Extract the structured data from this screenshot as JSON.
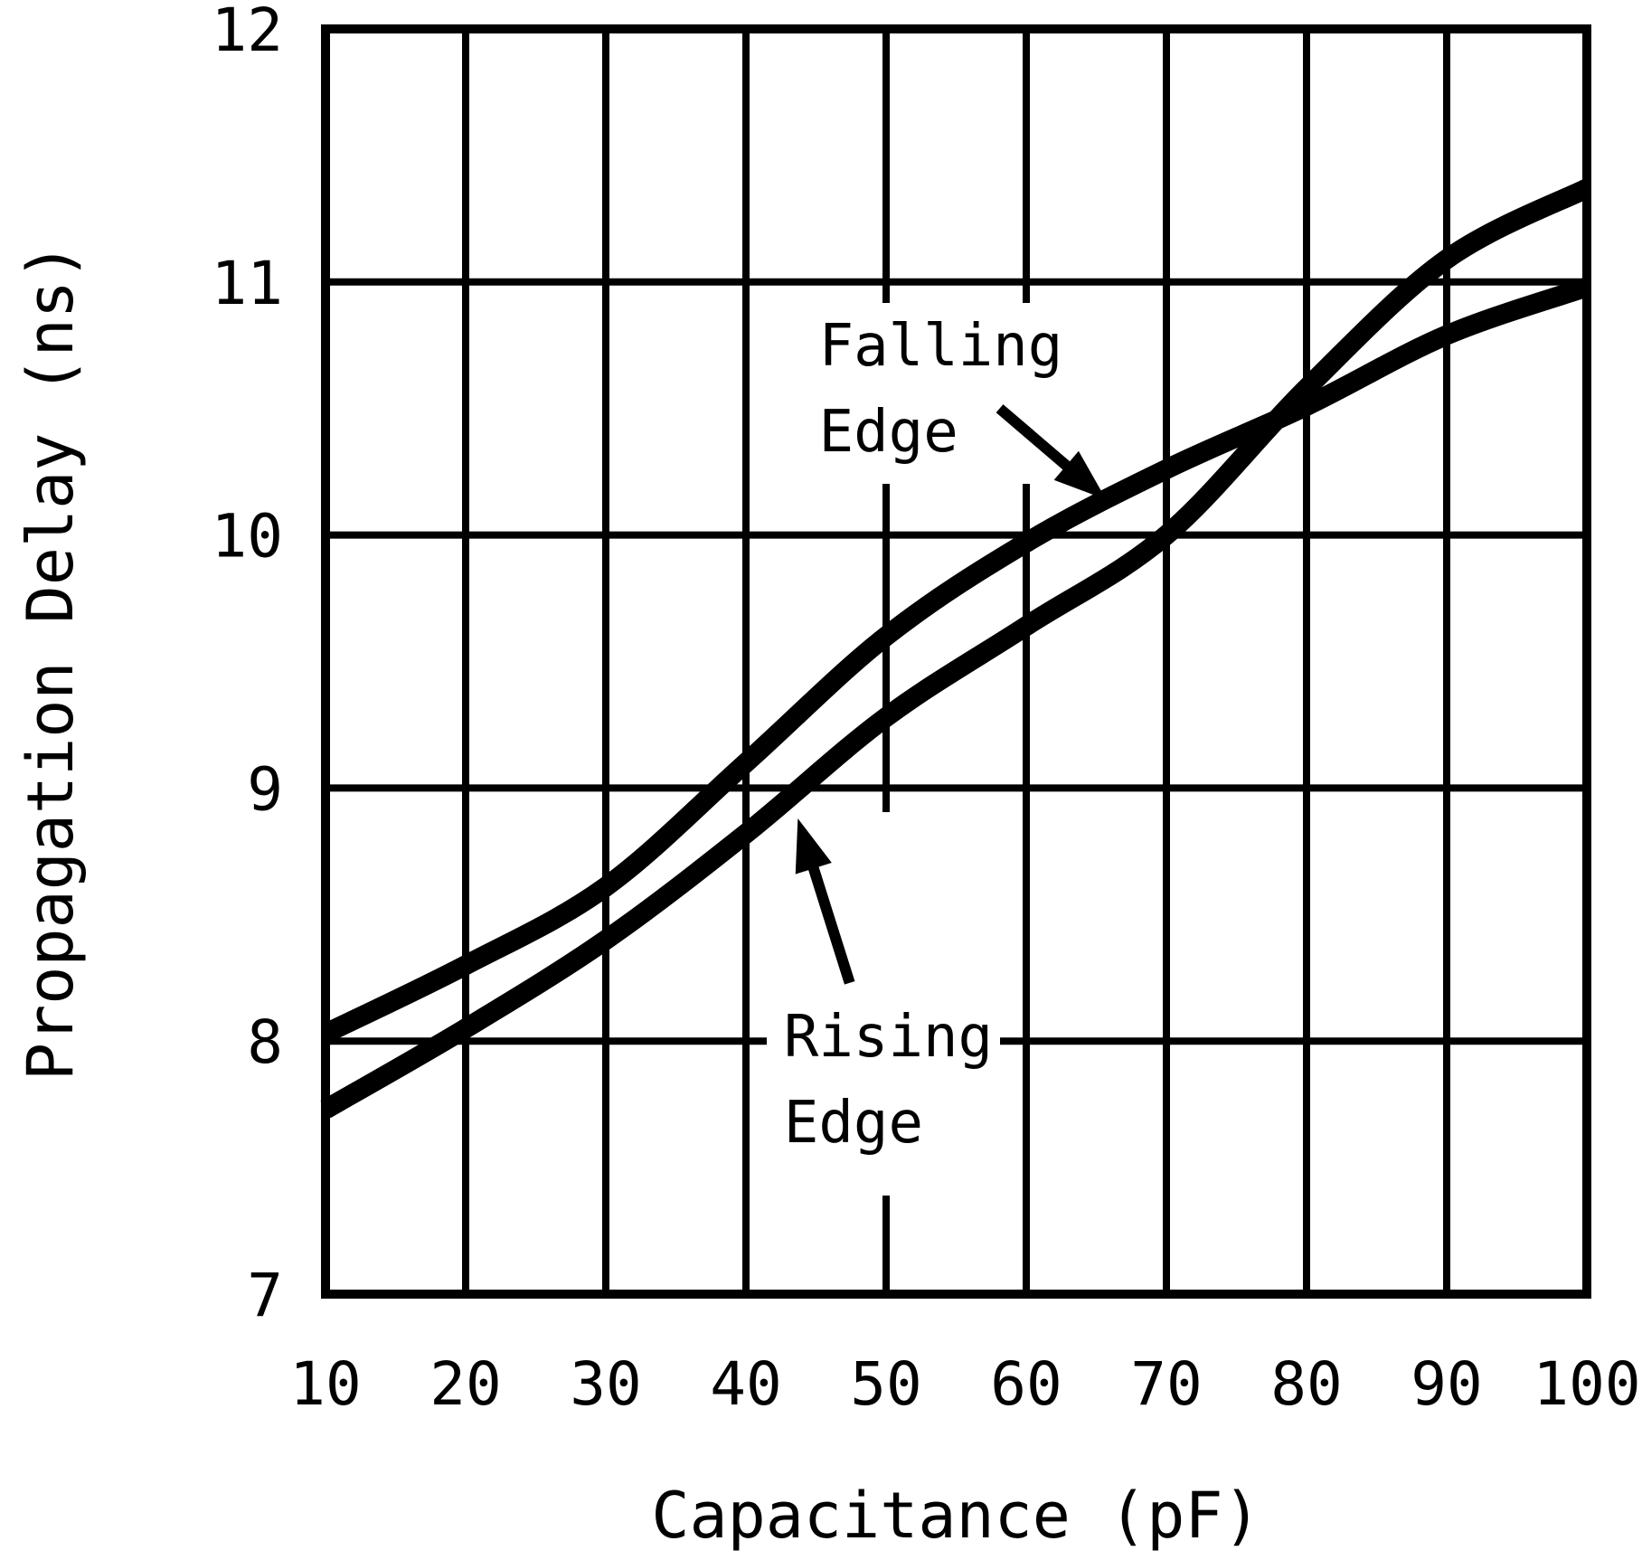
{
  "figure": {
    "background": "#ffffff",
    "line_color": "#000000"
  },
  "chart_data": {
    "type": "line",
    "title": "",
    "xlabel": "Capacitance (pF)",
    "ylabel": "Propagation Delay (ns)",
    "xlim": [
      10,
      100
    ],
    "ylim": [
      7,
      12
    ],
    "xticks": [
      10,
      20,
      30,
      40,
      50,
      60,
      70,
      80,
      90,
      100
    ],
    "yticks": [
      7,
      8,
      9,
      10,
      11,
      12
    ],
    "grid": true,
    "legend_position": "inline-annotations",
    "x": [
      10,
      20,
      30,
      40,
      50,
      60,
      70,
      80,
      90,
      100
    ],
    "series": [
      {
        "name": "Falling Edge",
        "values": [
          8.03,
          8.3,
          8.61,
          9.1,
          9.6,
          9.97,
          10.26,
          10.51,
          10.79,
          10.98
        ]
      },
      {
        "name": "Rising Edge",
        "values": [
          7.73,
          8.05,
          8.4,
          8.82,
          9.28,
          9.64,
          10.0,
          10.58,
          11.09,
          11.37
        ]
      }
    ],
    "annotations": [
      {
        "id": "falling",
        "lines": [
          "Falling",
          "Edge"
        ],
        "label_pf": 45.2,
        "label_ns": 10.67,
        "arrow": {
          "from_pf": 58.1,
          "from_ns": 10.5,
          "to_pf": 65.7,
          "to_ns": 10.14
        }
      },
      {
        "id": "rising",
        "lines": [
          "Rising",
          "Edge"
        ],
        "label_pf": 42.7,
        "label_ns": 7.94,
        "arrow": {
          "from_pf": 47.4,
          "from_ns": 8.23,
          "to_pf": 43.7,
          "to_ns": 8.88
        }
      }
    ]
  }
}
